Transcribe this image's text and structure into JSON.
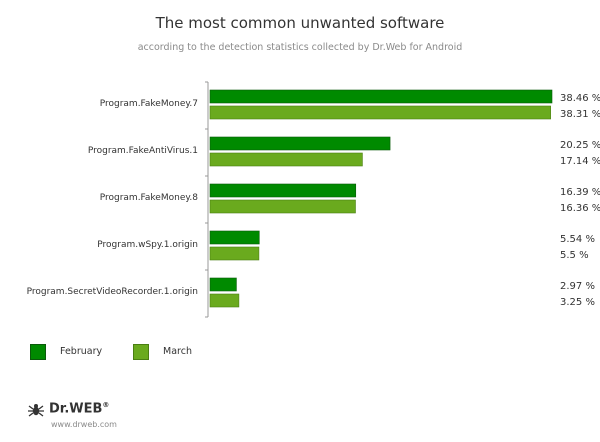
{
  "title": "The most common unwanted software",
  "subtitle": "according to the detection statistics collected by Dr.Web for Android",
  "chart_data": {
    "type": "bar",
    "orientation": "horizontal",
    "categories": [
      "Program.FakeMoney.7",
      "Program.FakeAntiVirus.1",
      "Program.FakeMoney.8",
      "Program.wSpy.1.origin",
      "Program.SecretVideoRecorder.1.origin"
    ],
    "series": [
      {
        "name": "February",
        "color": "#008a00",
        "values": [
          38.46,
          20.25,
          16.39,
          5.54,
          2.97
        ],
        "labels": [
          "38.46 %",
          "20.25 %",
          "16.39 %",
          "5.54 %",
          "2.97 %"
        ]
      },
      {
        "name": "March",
        "color": "#6aaa1e",
        "values": [
          38.31,
          17.14,
          16.36,
          5.5,
          3.25
        ],
        "labels": [
          "38.31 %",
          "17.14 %",
          "16.36 %",
          "5.5 %",
          "3.25 %"
        ]
      }
    ],
    "xlim": [
      0,
      38.46
    ],
    "legend_position": "bottom-left",
    "grid": false
  },
  "legend": [
    {
      "label": "February",
      "color": "#008a00"
    },
    {
      "label": "March",
      "color": "#6aaa1e"
    }
  ],
  "logo": {
    "text": "Dr.WEB",
    "registered": "®",
    "url": "www.drweb.com"
  }
}
